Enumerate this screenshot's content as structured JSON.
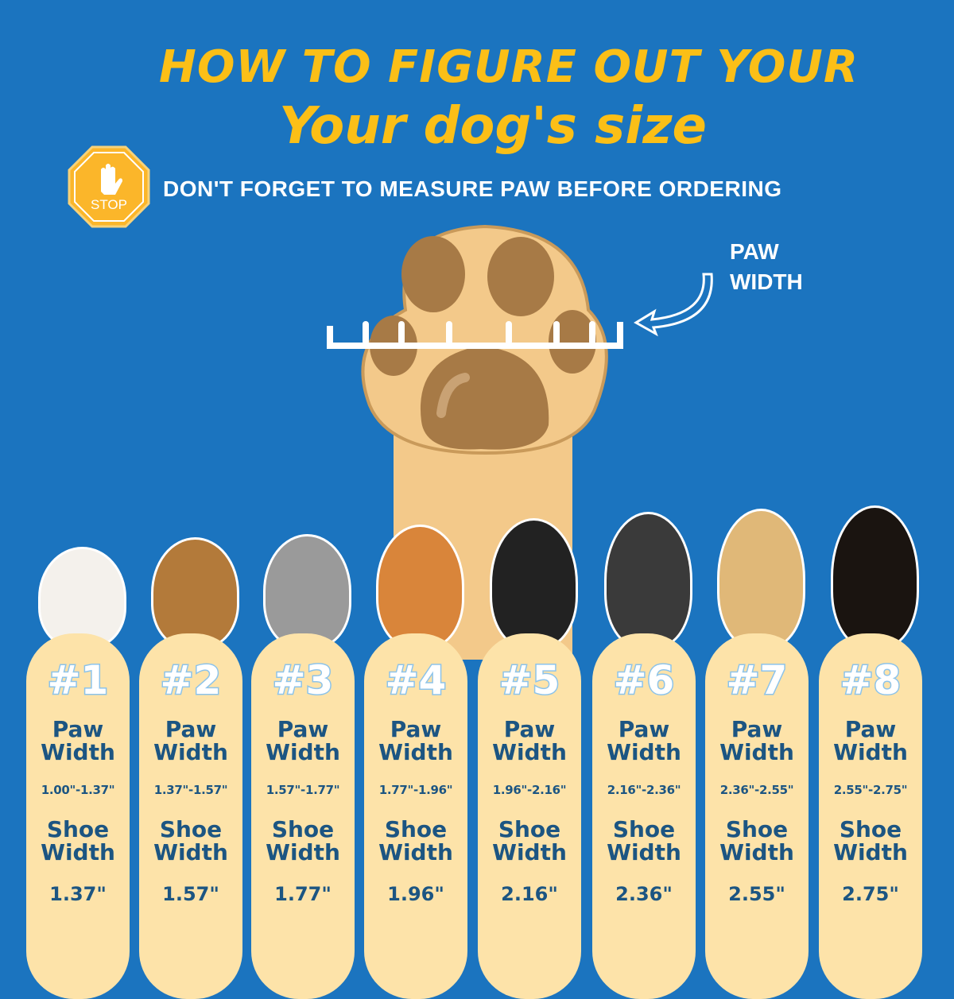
{
  "header": {
    "title_line1": "HOW TO FIGURE OUT YOUR",
    "title_line2": "Your dog's size",
    "reminder": "DON'T FORGET TO MEASURE PAW BEFORE ORDERING",
    "stop_sign": "STOP"
  },
  "diagram": {
    "paw_label_line1": "PAW",
    "paw_label_line2": "WIDTH"
  },
  "colors": {
    "background": "#1b74bf",
    "title": "#fbbf17",
    "card": "#fde3a9",
    "card_text": "#1c5582"
  },
  "sizes": [
    {
      "number": "#1",
      "paw_label1": "Paw",
      "paw_label2": "Width",
      "paw_range": "1.00\"-1.37\"",
      "shoe_label1": "Shoe",
      "shoe_label2": "Width",
      "shoe_width": "1.37\""
    },
    {
      "number": "#2",
      "paw_label1": "Paw",
      "paw_label2": "Width",
      "paw_range": "1.37\"-1.57\"",
      "shoe_label1": "Shoe",
      "shoe_label2": "Width",
      "shoe_width": "1.57\""
    },
    {
      "number": "#3",
      "paw_label1": "Paw",
      "paw_label2": "Width",
      "paw_range": "1.57\"-1.77\"",
      "shoe_label1": "Shoe",
      "shoe_label2": "Width",
      "shoe_width": "1.77\""
    },
    {
      "number": "#4",
      "paw_label1": "Paw",
      "paw_label2": "Width",
      "paw_range": "1.77\"-1.96\"",
      "shoe_label1": "Shoe",
      "shoe_label2": "Width",
      "shoe_width": "1.96\""
    },
    {
      "number": "#5",
      "paw_label1": "Paw",
      "paw_label2": "Width",
      "paw_range": "1.96\"-2.16\"",
      "shoe_label1": "Shoe",
      "shoe_label2": "Width",
      "shoe_width": "2.16\""
    },
    {
      "number": "#6",
      "paw_label1": "Paw",
      "paw_label2": "Width",
      "paw_range": "2.16\"-2.36\"",
      "shoe_label1": "Shoe",
      "shoe_label2": "Width",
      "shoe_width": "2.36\""
    },
    {
      "number": "#7",
      "paw_label1": "Paw",
      "paw_label2": "Width",
      "paw_range": "2.36\"-2.55\"",
      "shoe_label1": "Shoe",
      "shoe_label2": "Width",
      "shoe_width": "2.55\""
    },
    {
      "number": "#8",
      "paw_label1": "Paw",
      "paw_label2": "Width",
      "paw_range": "2.55\"-2.75\"",
      "shoe_label1": "Shoe",
      "shoe_label2": "Width",
      "shoe_width": "2.75\""
    }
  ]
}
